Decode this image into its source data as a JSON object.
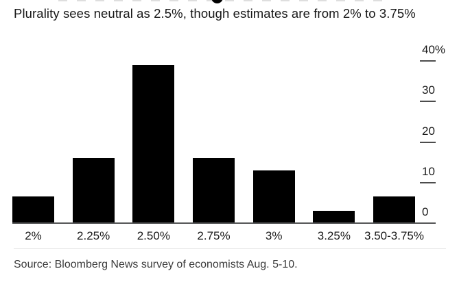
{
  "header": {
    "subtitle": "Plurality sees neutral as 2.5%, though estimates are from 2% to 3.75%"
  },
  "footer": {
    "source": "Source: Bloomberg News survey of economists Aug. 5-10."
  },
  "colors": {
    "bar": "#000000",
    "axis_line": "#555657",
    "tick": "#4c4c4c",
    "text_primary": "#161616",
    "source_text": "#3c3c3c",
    "divider": "#e0e0e0",
    "background": "#ffffff"
  },
  "chart_data": {
    "type": "bar",
    "title": "Plurality sees neutral as 2.5%, though estimates are from 2% to 3.75%",
    "categories": [
      "2%",
      "2.25%",
      "2.50%",
      "2.75%",
      "3%",
      "3.25%",
      "3.50-3.75%"
    ],
    "values": [
      6.5,
      16,
      39,
      16,
      13,
      3,
      6.5
    ],
    "xlabel": "",
    "ylabel": "",
    "ylim": [
      0,
      40
    ],
    "yticks": [
      0,
      10,
      20,
      30,
      40
    ],
    "ytick_labels": [
      "0",
      "10",
      "20",
      "30",
      "40%"
    ],
    "y_axis_side": "right",
    "grid": false,
    "legend": "none",
    "bar_color": "#000000",
    "source": "Source: Bloomberg News survey of economists Aug. 5-10."
  }
}
